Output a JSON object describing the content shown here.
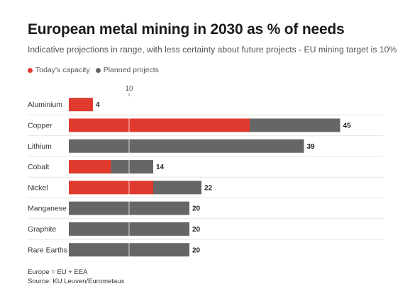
{
  "chart_data": {
    "type": "bar",
    "stacked": true,
    "orientation": "horizontal",
    "title": "European metal mining in 2030 as % of needs",
    "subtitle": "Indicative projections in range, with less certainty about future projects - EU mining target is 10%",
    "categories": [
      "Aluminium",
      "Copper",
      "Lithium",
      "Cobalt",
      "Nickel",
      "Manganese",
      "Graphite",
      "Rare Earths"
    ],
    "series": [
      {
        "name": "Today's capacity",
        "color": "#e03a2f",
        "values": [
          4,
          30,
          0,
          7,
          14,
          0,
          0,
          0
        ]
      },
      {
        "name": "Planned projects",
        "color": "#666666",
        "values": [
          0,
          15,
          39,
          7,
          8,
          20,
          20,
          20
        ]
      }
    ],
    "totals": [
      "4",
      "45",
      "39",
      "14",
      "22",
      "20",
      "20",
      "20"
    ],
    "reference_line": {
      "value": 10,
      "label": "10"
    },
    "xlim": [
      0,
      48
    ],
    "legend_position": "top-left",
    "grid": false
  },
  "footer": {
    "note": "Europe = EU + EEA",
    "source": "Source: KU Leuven/Eurometaux"
  }
}
